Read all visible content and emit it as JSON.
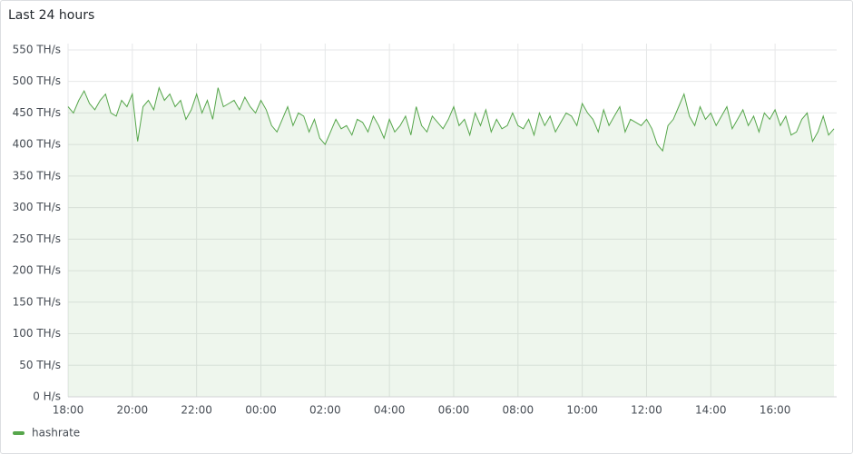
{
  "chart_data": {
    "type": "line",
    "title": "Last 24 hours",
    "x": [
      "18:00",
      "18:10",
      "18:20",
      "18:30",
      "18:40",
      "18:50",
      "19:00",
      "19:10",
      "19:20",
      "19:30",
      "19:40",
      "19:50",
      "20:00",
      "20:10",
      "20:20",
      "20:30",
      "20:40",
      "20:50",
      "21:00",
      "21:10",
      "21:20",
      "21:30",
      "21:40",
      "21:50",
      "22:00",
      "22:10",
      "22:20",
      "22:30",
      "22:40",
      "22:50",
      "23:00",
      "23:10",
      "23:20",
      "23:30",
      "23:40",
      "23:50",
      "00:00",
      "00:10",
      "00:20",
      "00:30",
      "00:40",
      "00:50",
      "01:00",
      "01:10",
      "01:20",
      "01:30",
      "01:40",
      "01:50",
      "02:00",
      "02:10",
      "02:20",
      "02:30",
      "02:40",
      "02:50",
      "03:00",
      "03:10",
      "03:20",
      "03:30",
      "03:40",
      "03:50",
      "04:00",
      "04:10",
      "04:20",
      "04:30",
      "04:40",
      "04:50",
      "05:00",
      "05:10",
      "05:20",
      "05:30",
      "05:40",
      "05:50",
      "06:00",
      "06:10",
      "06:20",
      "06:30",
      "06:40",
      "06:50",
      "07:00",
      "07:10",
      "07:20",
      "07:30",
      "07:40",
      "07:50",
      "08:00",
      "08:10",
      "08:20",
      "08:30",
      "08:40",
      "08:50",
      "09:00",
      "09:10",
      "09:20",
      "09:30",
      "09:40",
      "09:50",
      "10:00",
      "10:10",
      "10:20",
      "10:30",
      "10:40",
      "10:50",
      "11:00",
      "11:10",
      "11:20",
      "11:30",
      "11:40",
      "11:50",
      "12:00",
      "12:10",
      "12:20",
      "12:30",
      "12:40",
      "12:50",
      "13:00",
      "13:10",
      "13:20",
      "13:30",
      "13:40",
      "13:50",
      "14:00",
      "14:10",
      "14:20",
      "14:30",
      "14:40",
      "14:50",
      "15:00",
      "15:10",
      "15:20",
      "15:30",
      "15:40",
      "15:50",
      "16:00",
      "16:10",
      "16:20",
      "16:30",
      "16:40",
      "16:50",
      "17:00",
      "17:10",
      "17:20",
      "17:30",
      "17:40",
      "17:50"
    ],
    "series": [
      {
        "name": "hashrate",
        "color": "#56a64b",
        "values": [
          460,
          450,
          470,
          485,
          465,
          455,
          470,
          480,
          450,
          445,
          470,
          460,
          480,
          405,
          460,
          470,
          455,
          490,
          470,
          480,
          460,
          470,
          440,
          455,
          480,
          450,
          470,
          440,
          490,
          460,
          465,
          470,
          455,
          475,
          460,
          450,
          470,
          455,
          430,
          420,
          440,
          460,
          430,
          450,
          445,
          420,
          440,
          410,
          400,
          420,
          440,
          425,
          430,
          415,
          440,
          435,
          420,
          445,
          430,
          410,
          440,
          420,
          430,
          445,
          415,
          460,
          430,
          420,
          445,
          435,
          425,
          440,
          460,
          430,
          440,
          415,
          450,
          430,
          455,
          420,
          440,
          425,
          430,
          450,
          430,
          425,
          440,
          415,
          450,
          430,
          445,
          420,
          435,
          450,
          445,
          430,
          465,
          450,
          440,
          420,
          455,
          430,
          445,
          460,
          420,
          440,
          435,
          430,
          440,
          425,
          400,
          390,
          430,
          440,
          460,
          480,
          445,
          430,
          460,
          440,
          450,
          430,
          445,
          460,
          425,
          440,
          455,
          430,
          445,
          420,
          450,
          440,
          455,
          430,
          445,
          415,
          420,
          440,
          450,
          405,
          420,
          445,
          415,
          425
        ]
      }
    ],
    "xlim": [
      "18:00",
      "17:55"
    ],
    "xticks": [
      "18:00",
      "20:00",
      "22:00",
      "00:00",
      "02:00",
      "04:00",
      "06:00",
      "08:00",
      "10:00",
      "12:00",
      "14:00",
      "16:00"
    ],
    "ylim": [
      0,
      560
    ],
    "yticks": [
      {
        "value": 0,
        "label": "0 H/s"
      },
      {
        "value": 50,
        "label": "50 TH/s"
      },
      {
        "value": 100,
        "label": "100 TH/s"
      },
      {
        "value": 150,
        "label": "150 TH/s"
      },
      {
        "value": 200,
        "label": "200 TH/s"
      },
      {
        "value": 250,
        "label": "250 TH/s"
      },
      {
        "value": 300,
        "label": "300 TH/s"
      },
      {
        "value": 350,
        "label": "350 TH/s"
      },
      {
        "value": 400,
        "label": "400 TH/s"
      },
      {
        "value": 450,
        "label": "450 TH/s"
      },
      {
        "value": 500,
        "label": "500 TH/s"
      },
      {
        "value": 550,
        "label": "550 TH/s"
      }
    ],
    "grid": true
  }
}
